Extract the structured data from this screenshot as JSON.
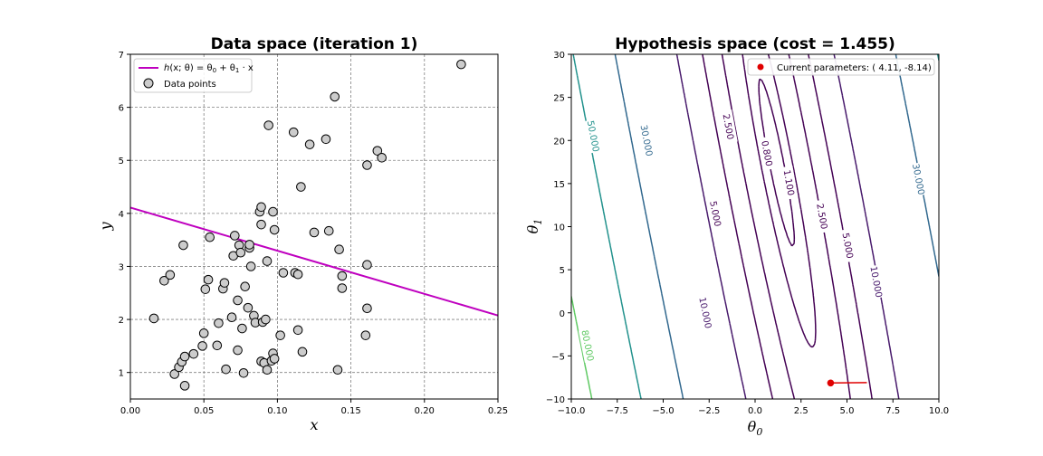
{
  "chart_data": [
    {
      "type": "scatter",
      "title": "Data space (iteration 1)",
      "xlabel": "x",
      "ylabel": "y",
      "xlim": [
        0.0,
        0.25
      ],
      "ylim": [
        0.5,
        7.0
      ],
      "xticks": [
        "0.00",
        "0.05",
        "0.10",
        "0.15",
        "0.20",
        "0.25"
      ],
      "yticks": [
        "1",
        "2",
        "3",
        "4",
        "5",
        "6",
        "7"
      ],
      "grid": true,
      "legend_position": "top-left",
      "legend": {
        "line_label": "h(x; θ) = θ0 + θ1 · x",
        "line_label_parts": {
          "h": "h",
          "args": "(x; θ) = θ",
          "s0": "0",
          "plus": " + θ",
          "s1": "1",
          "tail": " · x"
        },
        "points_label": "Data points"
      },
      "line": {
        "intercept": 4.11,
        "slope": -8.14,
        "color": "#bf00bf"
      },
      "point_color": "#cccccc",
      "points": [
        {
          "x": 0.016,
          "y": 2.02
        },
        {
          "x": 0.023,
          "y": 2.73
        },
        {
          "x": 0.027,
          "y": 2.84
        },
        {
          "x": 0.03,
          "y": 0.97
        },
        {
          "x": 0.033,
          "y": 1.1
        },
        {
          "x": 0.035,
          "y": 1.2
        },
        {
          "x": 0.036,
          "y": 3.4
        },
        {
          "x": 0.037,
          "y": 1.3
        },
        {
          "x": 0.037,
          "y": 0.75
        },
        {
          "x": 0.043,
          "y": 1.35
        },
        {
          "x": 0.049,
          "y": 1.5
        },
        {
          "x": 0.05,
          "y": 1.74
        },
        {
          "x": 0.051,
          "y": 2.57
        },
        {
          "x": 0.053,
          "y": 2.75
        },
        {
          "x": 0.054,
          "y": 3.55
        },
        {
          "x": 0.059,
          "y": 1.51
        },
        {
          "x": 0.06,
          "y": 1.93
        },
        {
          "x": 0.063,
          "y": 2.58
        },
        {
          "x": 0.064,
          "y": 2.69
        },
        {
          "x": 0.065,
          "y": 1.06
        },
        {
          "x": 0.069,
          "y": 2.04
        },
        {
          "x": 0.07,
          "y": 3.2
        },
        {
          "x": 0.071,
          "y": 3.58
        },
        {
          "x": 0.073,
          "y": 1.42
        },
        {
          "x": 0.073,
          "y": 2.36
        },
        {
          "x": 0.074,
          "y": 3.4
        },
        {
          "x": 0.075,
          "y": 3.26
        },
        {
          "x": 0.076,
          "y": 1.83
        },
        {
          "x": 0.077,
          "y": 0.99
        },
        {
          "x": 0.078,
          "y": 2.62
        },
        {
          "x": 0.08,
          "y": 2.22
        },
        {
          "x": 0.081,
          "y": 3.35
        },
        {
          "x": 0.081,
          "y": 3.41
        },
        {
          "x": 0.082,
          "y": 3.0
        },
        {
          "x": 0.084,
          "y": 2.07
        },
        {
          "x": 0.085,
          "y": 1.94
        },
        {
          "x": 0.088,
          "y": 4.03
        },
        {
          "x": 0.089,
          "y": 4.12
        },
        {
          "x": 0.089,
          "y": 3.79
        },
        {
          "x": 0.089,
          "y": 1.21
        },
        {
          "x": 0.09,
          "y": 1.95
        },
        {
          "x": 0.091,
          "y": 1.18
        },
        {
          "x": 0.092,
          "y": 2.0
        },
        {
          "x": 0.093,
          "y": 3.1
        },
        {
          "x": 0.093,
          "y": 1.05
        },
        {
          "x": 0.094,
          "y": 5.66
        },
        {
          "x": 0.096,
          "y": 1.22
        },
        {
          "x": 0.097,
          "y": 4.03
        },
        {
          "x": 0.097,
          "y": 1.36
        },
        {
          "x": 0.098,
          "y": 1.26
        },
        {
          "x": 0.098,
          "y": 3.69
        },
        {
          "x": 0.102,
          "y": 1.7
        },
        {
          "x": 0.104,
          "y": 2.88
        },
        {
          "x": 0.111,
          "y": 5.53
        },
        {
          "x": 0.112,
          "y": 2.88
        },
        {
          "x": 0.114,
          "y": 2.85
        },
        {
          "x": 0.114,
          "y": 1.8
        },
        {
          "x": 0.116,
          "y": 4.5
        },
        {
          "x": 0.117,
          "y": 1.39
        },
        {
          "x": 0.122,
          "y": 5.3
        },
        {
          "x": 0.125,
          "y": 3.64
        },
        {
          "x": 0.133,
          "y": 5.4
        },
        {
          "x": 0.135,
          "y": 3.67
        },
        {
          "x": 0.139,
          "y": 6.2
        },
        {
          "x": 0.141,
          "y": 1.05
        },
        {
          "x": 0.142,
          "y": 3.32
        },
        {
          "x": 0.144,
          "y": 2.82
        },
        {
          "x": 0.144,
          "y": 2.59
        },
        {
          "x": 0.16,
          "y": 1.7
        },
        {
          "x": 0.161,
          "y": 4.91
        },
        {
          "x": 0.161,
          "y": 3.03
        },
        {
          "x": 0.161,
          "y": 2.21
        },
        {
          "x": 0.168,
          "y": 5.18
        },
        {
          "x": 0.171,
          "y": 5.05
        },
        {
          "x": 0.225,
          "y": 6.81
        }
      ]
    },
    {
      "type": "contour",
      "title": "Hypothesis space (cost =  1.455)",
      "xlabel": "θ0",
      "ylabel": "θ1",
      "xlabel_parts": {
        "base": "θ",
        "sub": "0"
      },
      "ylabel_parts": {
        "base": "θ",
        "sub": "1"
      },
      "xlim": [
        -10.0,
        10.0
      ],
      "ylim": [
        -10.0,
        30.0
      ],
      "xticks": [
        "−10.0",
        "−7.5",
        "−5.0",
        "−2.5",
        "0.0",
        "2.5",
        "5.0",
        "7.5",
        "10.0"
      ],
      "yticks": [
        "−10",
        "−5",
        "0",
        "5",
        "10",
        "15",
        "20",
        "25",
        "30"
      ],
      "grid": false,
      "legend_position": "top-right",
      "legend": {
        "marker_label": "Current parameters: ( 4.11, -8.14)"
      },
      "current_point": {
        "theta0": 4.11,
        "theta1": -8.14,
        "color": "#e00000"
      },
      "contours": [
        {
          "level": 0.8,
          "label": "0.800",
          "color": "#440154",
          "label_at": [
            0.65,
            18.5
          ]
        },
        {
          "level": 1.1,
          "label": "1.100",
          "color": "#440154",
          "label_at": [
            1.85,
            15.1
          ]
        },
        {
          "level": 2.5,
          "label": "2.500",
          "color": "#440154",
          "label_at": [
            -1.45,
            21.6
          ]
        },
        {
          "level": 2.5,
          "label": "2.500",
          "color": "#440154",
          "label_at": [
            3.65,
            11.2
          ]
        },
        {
          "level": 5.0,
          "label": "5.000",
          "color": "#440154",
          "label_at": [
            -2.15,
            11.5
          ]
        },
        {
          "level": 5.0,
          "label": "5.000",
          "color": "#440154",
          "label_at": [
            5.05,
            7.8
          ]
        },
        {
          "level": 10.0,
          "label": "10.000",
          "color": "#481a6c",
          "label_at": [
            -2.7,
            0.0
          ]
        },
        {
          "level": 10.0,
          "label": "10.000",
          "color": "#481a6c",
          "label_at": [
            6.6,
            3.6
          ]
        },
        {
          "level": 30.0,
          "label": "30.000",
          "color": "#31688e",
          "label_at": [
            -5.9,
            20.0
          ]
        },
        {
          "level": 30.0,
          "label": "30.000",
          "color": "#31688e",
          "label_at": [
            8.9,
            15.5
          ]
        },
        {
          "level": 50.0,
          "label": "50.000",
          "color": "#21918c",
          "label_at": [
            -8.8,
            20.5
          ]
        },
        {
          "level": 80.0,
          "label": "80.000",
          "color": "#5ec962",
          "label_at": [
            -9.1,
            -3.8
          ]
        }
      ]
    }
  ]
}
